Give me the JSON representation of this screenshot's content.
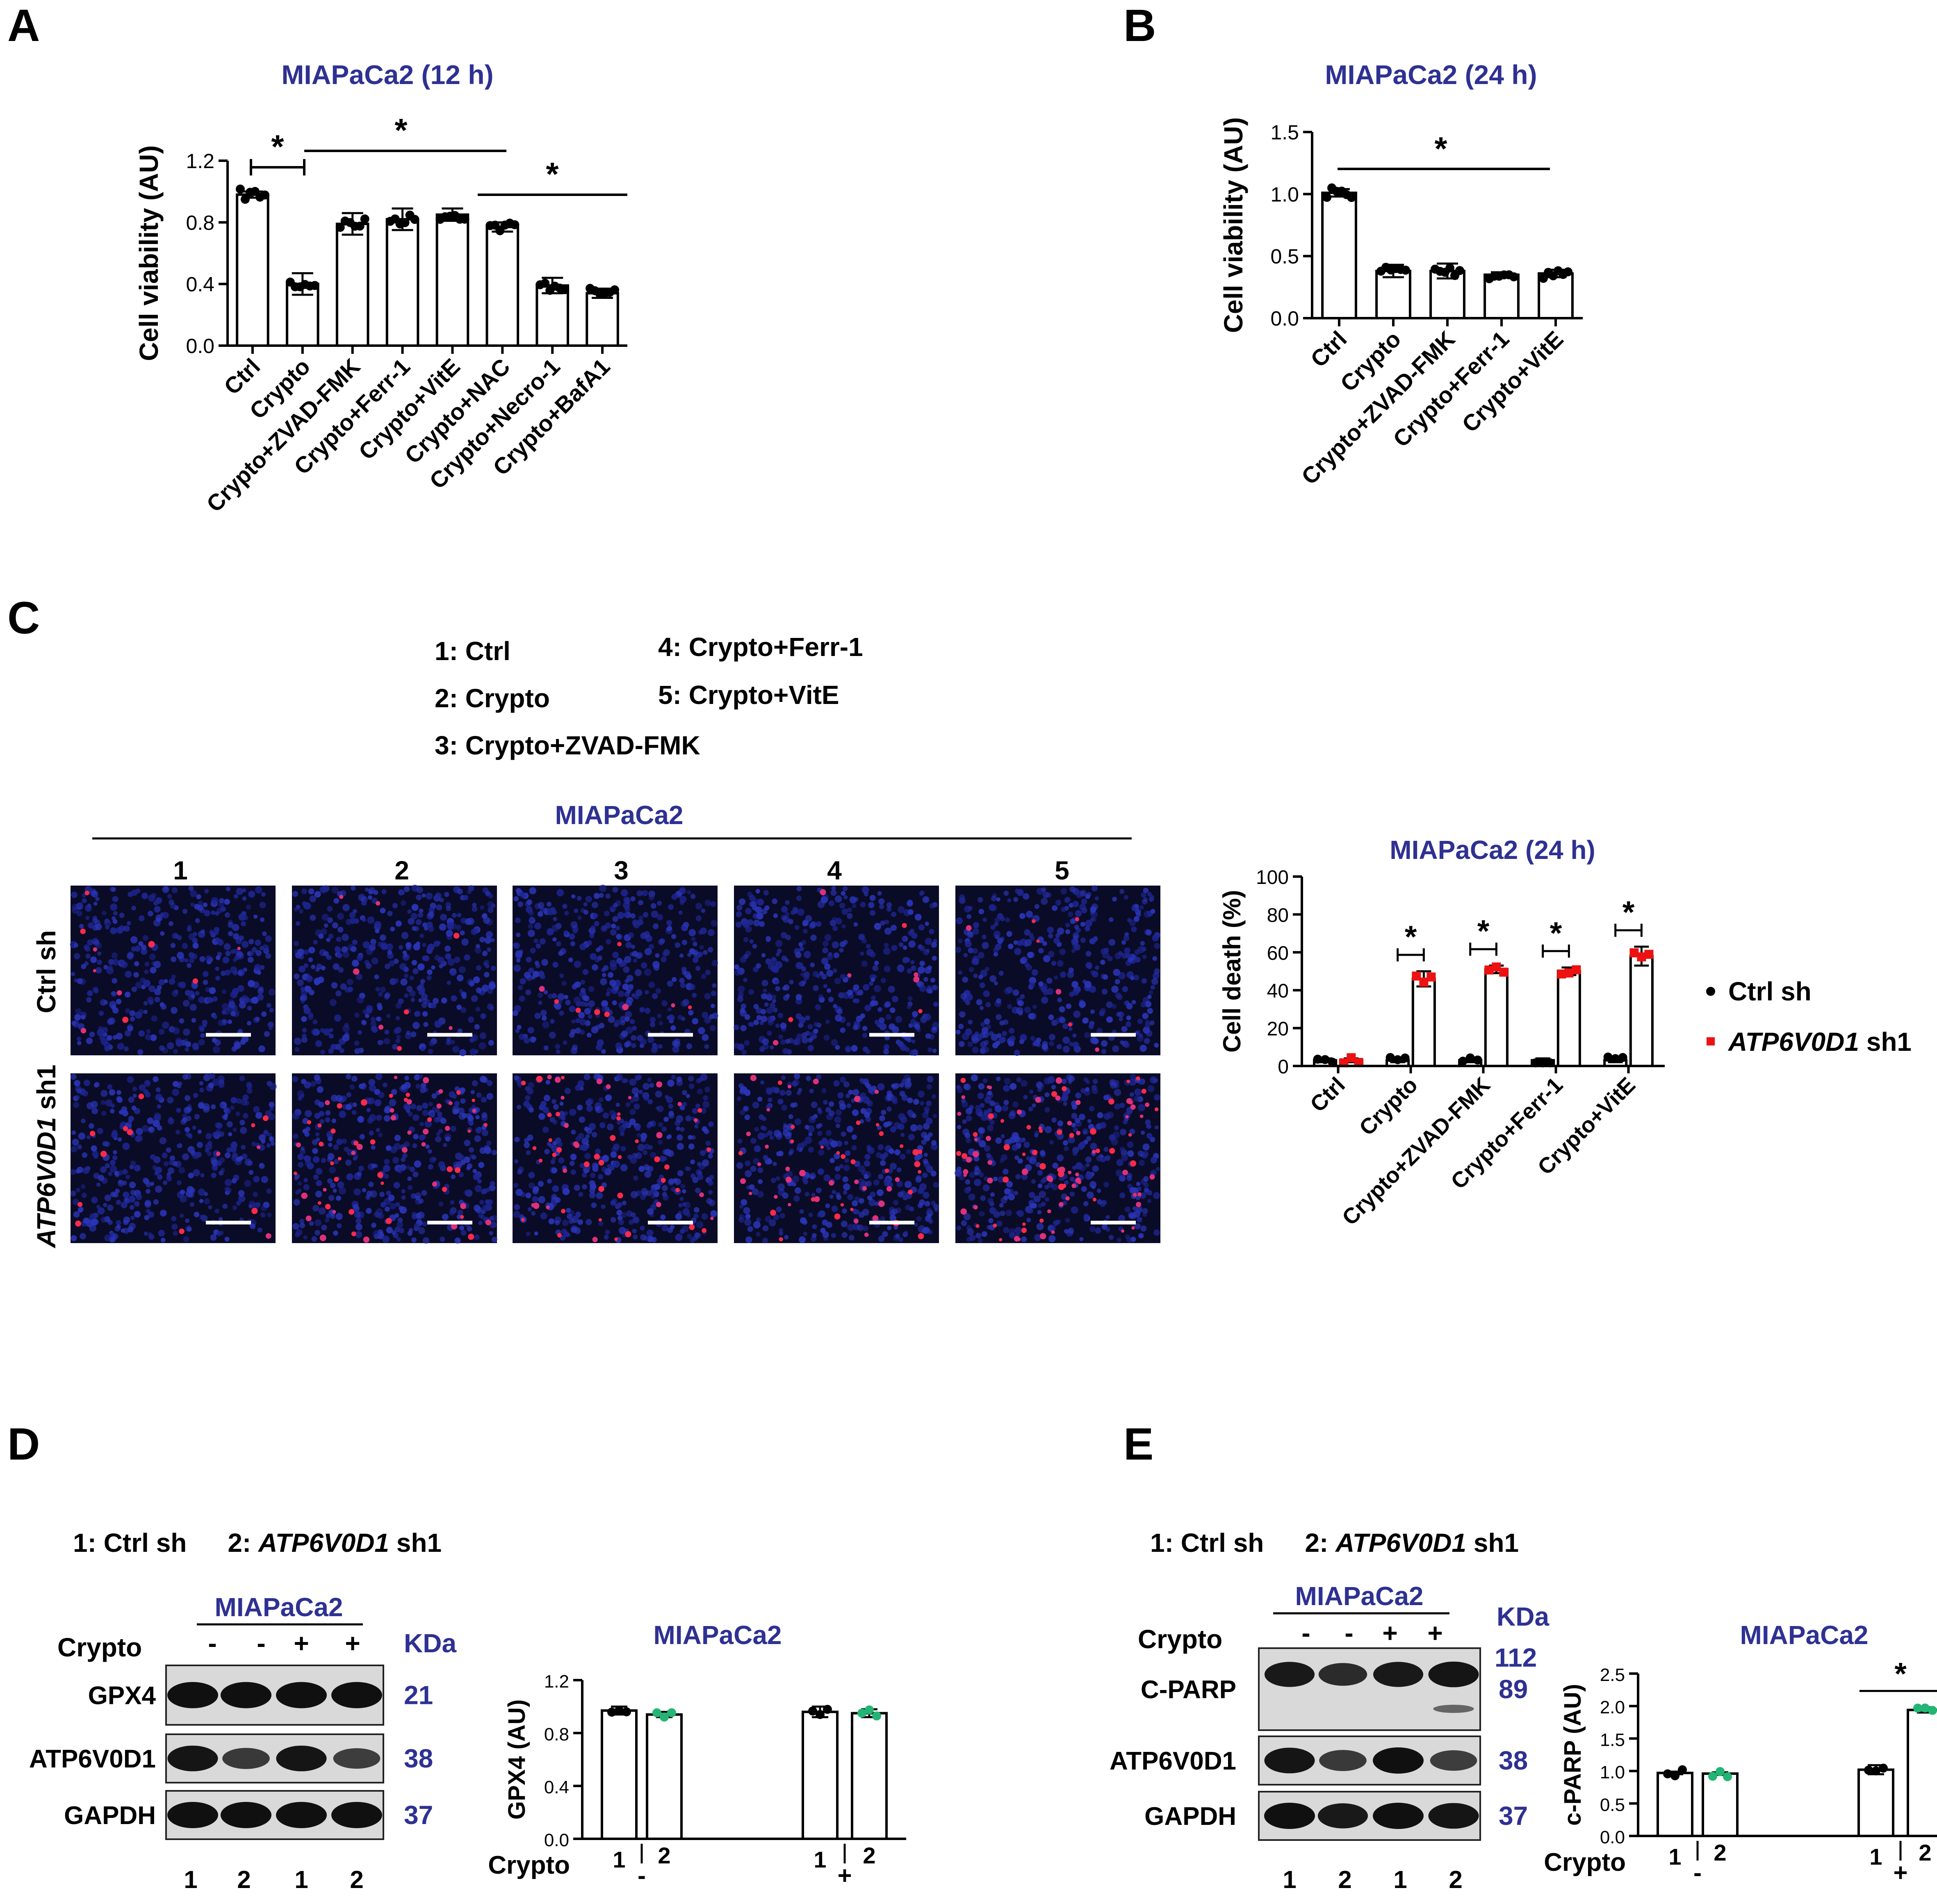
{
  "colors": {
    "title": "#2e3192",
    "kda": "#2e3192",
    "black_dot": "#000000",
    "red_dot": "#ee1111",
    "green_dot": "#22b573",
    "micro_bg": "#0a0b26"
  },
  "panelA": {
    "letter": "A",
    "title": "MIAPaCa2 (12 h)",
    "sig": "*"
  },
  "panelB": {
    "letter": "B",
    "title": "MIAPaCa2 (24 h)",
    "sig": "*"
  },
  "panelC": {
    "letter": "C",
    "legend": [
      "1:  Ctrl",
      "2: Crypto",
      "3:  Crypto+ZVAD-FMK",
      "4: Crypto+Ferr-1",
      "5:  Crypto+VitE"
    ],
    "micro_header": "MIAPaCa2",
    "col_labels": [
      "1",
      "2",
      "3",
      "4",
      "5"
    ],
    "row_label_ctrl": "Ctrl sh",
    "row_label_kd_gene": "ATP6V0D1",
    "row_label_kd_suffix": " sh1",
    "legend_ctrl": "Ctrl sh",
    "legend_kd_gene": "ATP6V0D1",
    "legend_kd_suffix": " sh1",
    "sig": "*"
  },
  "panelD": {
    "letter": "D",
    "key_ctrl": "1: Ctrl sh",
    "key_kd_prefix": "2: ",
    "key_kd_gene": "ATP6V0D1",
    "key_kd_suffix": " sh1",
    "blot_header": "MIAPaCa2",
    "crypto_label": "Crypto",
    "crypto_signs": [
      "-",
      "-",
      "+",
      "+"
    ],
    "kda_label": "KDa",
    "blots": [
      {
        "name": "GPX4",
        "kda": "21"
      },
      {
        "name": "ATP6V0D1",
        "kda": "38"
      },
      {
        "name": "GAPDH",
        "kda": "37"
      }
    ],
    "lanes": [
      "1",
      "2",
      "1",
      "2"
    ],
    "chart_title": "MIAPaCa2",
    "x_crypto": "Crypto",
    "x_groups": [
      {
        "labels": [
          "1",
          "2"
        ],
        "sign": "-"
      },
      {
        "labels": [
          "1",
          "2"
        ],
        "sign": "+"
      }
    ]
  },
  "panelE": {
    "letter": "E",
    "key_ctrl": "1: Ctrl sh",
    "key_kd_prefix": "2: ",
    "key_kd_gene": "ATP6V0D1",
    "key_kd_suffix": " sh1",
    "blot_header": "MIAPaCa2",
    "crypto_label": "Crypto",
    "crypto_signs": [
      "-",
      "-",
      "+",
      "+"
    ],
    "kda_label": "KDa",
    "kda_112": "112",
    "blots": [
      {
        "name": "C-PARP",
        "kda": "89"
      },
      {
        "name": "ATP6V0D1",
        "kda": "38"
      },
      {
        "name": "GAPDH",
        "kda": "37"
      }
    ],
    "lanes": [
      "1",
      "2",
      "1",
      "2"
    ],
    "chart_title": "MIAPaCa2",
    "x_crypto": "Crypto",
    "x_groups": [
      {
        "labels": [
          "1",
          "2"
        ],
        "sign": "-"
      },
      {
        "labels": [
          "1",
          "2"
        ],
        "sign": "+"
      }
    ],
    "sig": "*"
  },
  "chart_data": [
    {
      "id": "A",
      "type": "bar",
      "title": "MIAPaCa2 (12 h)",
      "ylabel": "Cell viability (AU)",
      "ylim": [
        0,
        1.2
      ],
      "yticks": [
        "0.0",
        "0.4",
        "0.8",
        "1.2"
      ],
      "categories": [
        "Ctrl",
        "Crypto",
        "Crypto+ZVAD-FMK",
        "Crypto+Ferr-1",
        "Crypto+VitE",
        "Crypto+NAC",
        "Crypto+Necro-1",
        "Crypto+BafA1"
      ],
      "values": [
        0.98,
        0.4,
        0.79,
        0.82,
        0.85,
        0.77,
        0.39,
        0.34
      ],
      "errors": [
        0.02,
        0.07,
        0.07,
        0.07,
        0.04,
        0.03,
        0.05,
        0.03
      ]
    },
    {
      "id": "B",
      "type": "bar",
      "title": "MIAPaCa2 (24 h)",
      "ylabel": "Cell viability (AU)",
      "ylim": [
        0,
        1.5
      ],
      "yticks": [
        "0.0",
        "0.5",
        "1.0",
        "1.5"
      ],
      "categories": [
        "Ctrl",
        "Crypto",
        "Crypto+ZVAD-FMK",
        "Crypto+Ferr-1",
        "Crypto+VitE"
      ],
      "values": [
        1.01,
        0.38,
        0.38,
        0.35,
        0.36
      ],
      "errors": [
        0.03,
        0.05,
        0.06,
        0.02,
        0.03
      ]
    },
    {
      "id": "C",
      "type": "bar",
      "title": "MIAPaCa2 (24 h)",
      "ylabel": "Cell death (%)",
      "ylim": [
        0,
        100
      ],
      "yticks": [
        "0",
        "20",
        "40",
        "60",
        "80",
        "100"
      ],
      "categories": [
        "Ctrl",
        "Crypto",
        "Crypto+ZVAD-FMK",
        "Crypto+Ferr-1",
        "Crypto+VitE"
      ],
      "series": [
        {
          "name": "Ctrl sh",
          "values": [
            3,
            3,
            3,
            3,
            3
          ],
          "errors": [
            1,
            1,
            1,
            1,
            1
          ]
        },
        {
          "name": "ATP6V0D1 sh1",
          "values": [
            3,
            46,
            51,
            50,
            58
          ],
          "errors": [
            1,
            4,
            2,
            2,
            5
          ]
        }
      ]
    },
    {
      "id": "D",
      "type": "bar",
      "title": "MIAPaCa2",
      "ylabel": "GPX4 (AU)",
      "ylim": [
        0,
        1.2
      ],
      "yticks": [
        "0.0",
        "0.4",
        "0.8",
        "1.2"
      ],
      "values": [
        0.97,
        0.94,
        0.96,
        0.95
      ],
      "errors": [
        0.03,
        0.02,
        0.04,
        0.03
      ]
    },
    {
      "id": "E",
      "type": "bar",
      "title": "MIAPaCa2",
      "ylabel": "c-PARP (AU)",
      "ylim": [
        0,
        2.5
      ],
      "yticks": [
        "0.0",
        "0.5",
        "1.0",
        "1.5",
        "2.0",
        "2.5"
      ],
      "values": [
        0.97,
        0.96,
        1.02,
        1.94
      ],
      "errors": [
        0.02,
        0.02,
        0.07,
        0.04
      ]
    }
  ]
}
